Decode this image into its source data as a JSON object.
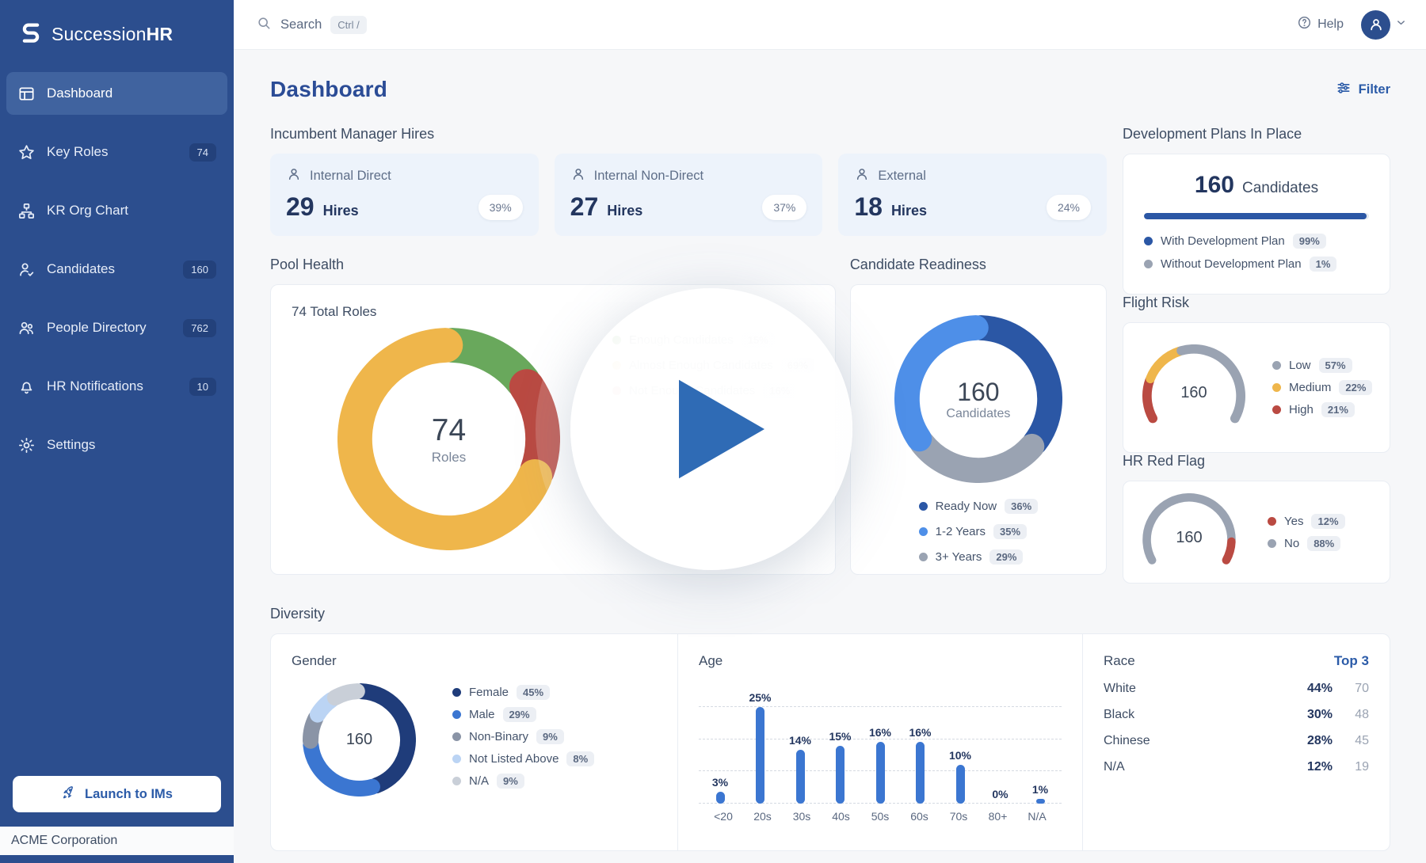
{
  "brand": {
    "prefix": "Succession",
    "suffix": "HR"
  },
  "topbar": {
    "search_label": "Search",
    "search_shortcut": "Ctrl /",
    "help_label": "Help"
  },
  "sidebar": {
    "items": [
      {
        "label": "Dashboard"
      },
      {
        "label": "Key Roles",
        "badge": "74"
      },
      {
        "label": "KR Org Chart"
      },
      {
        "label": "Candidates",
        "badge": "160"
      },
      {
        "label": "People Directory",
        "badge": "762"
      },
      {
        "label": "HR Notifications",
        "badge": "10"
      },
      {
        "label": "Settings"
      }
    ],
    "launch_button": "Launch to IMs",
    "company": "ACME Corporation"
  },
  "page": {
    "title": "Dashboard",
    "filter_label": "Filter"
  },
  "hires": {
    "title": "Incumbent Manager Hires",
    "cards": [
      {
        "label": "Internal Direct",
        "value": "29",
        "unit": "Hires",
        "percent": "39%"
      },
      {
        "label": "Internal Non-Direct",
        "value": "27",
        "unit": "Hires",
        "percent": "37%"
      },
      {
        "label": "External",
        "value": "18",
        "unit": "Hires",
        "percent": "24%"
      }
    ]
  },
  "chart_data": {
    "pool_health": {
      "type": "donut",
      "section_title": "Pool Health",
      "card_title": "74 Total Roles",
      "center_value": "74",
      "center_label": "Roles",
      "segments": [
        {
          "label": "Enough Candidates",
          "value": 15,
          "color": "#69A85C"
        },
        {
          "label": "Almost Enough Candidates",
          "value": 69,
          "color": "#EFB64B"
        },
        {
          "label": "Not Enough Candidates",
          "value": 16,
          "color": "#BA4A42"
        }
      ],
      "draw_order": [
        0,
        2,
        1
      ]
    },
    "candidate_readiness": {
      "type": "donut",
      "section_title": "Candidate Readiness",
      "center_value": "160",
      "center_label": "Candidates",
      "segments": [
        {
          "label": "Ready Now",
          "value": 36,
          "color": "#2B57A5"
        },
        {
          "label": "1-2 Years",
          "value": 35,
          "color": "#4E8FE8"
        },
        {
          "label": "3+ Years",
          "value": 29,
          "color": "#9AA3B2"
        }
      ],
      "draw_order": [
        0,
        2,
        1
      ]
    },
    "development_plans": {
      "type": "progress",
      "section_title": "Development Plans In Place",
      "value": "160",
      "unit": "Candidates",
      "bar_percent": 99,
      "bar_color": "#2B57A5",
      "segments": [
        {
          "label": "With Development Plan",
          "value": 99,
          "color": "#2B57A5"
        },
        {
          "label": "Without Development Plan",
          "value": 1,
          "color": "#9AA3B2"
        }
      ]
    },
    "flight_risk": {
      "type": "gauge",
      "section_title": "Flight Risk",
      "center_value": "160",
      "segments": [
        {
          "label": "Low",
          "value": 57,
          "color": "#9AA3B2"
        },
        {
          "label": "Medium",
          "value": 22,
          "color": "#EFB64B"
        },
        {
          "label": "High",
          "value": 21,
          "color": "#BA4A42"
        }
      ],
      "draw_order": [
        2,
        1,
        0
      ]
    },
    "hr_red_flag": {
      "type": "gauge",
      "section_title": "HR Red Flag",
      "center_value": "160",
      "segments": [
        {
          "label": "Yes",
          "value": 12,
          "color": "#BA4A42"
        },
        {
          "label": "No",
          "value": 88,
          "color": "#9AA3B2"
        }
      ],
      "draw_order": [
        1,
        0
      ]
    },
    "diversity": {
      "section_title": "Diversity",
      "gender": {
        "type": "donut",
        "title": "Gender",
        "center_value": "160",
        "segments": [
          {
            "label": "Female",
            "value": 45,
            "color": "#1F3C7A"
          },
          {
            "label": "Male",
            "value": 29,
            "color": "#3B76D1"
          },
          {
            "label": "Non-Binary",
            "value": 9,
            "color": "#8A94A6"
          },
          {
            "label": "Not Listed Above",
            "value": 8,
            "color": "#BBD4F4"
          },
          {
            "label": "N/A",
            "value": 9,
            "color": "#C9CFD8"
          }
        ],
        "draw_order": [
          0,
          1,
          2,
          3,
          4
        ]
      },
      "age": {
        "type": "bar",
        "title": "Age",
        "categories": [
          "<20",
          "20s",
          "30s",
          "40s",
          "50s",
          "60s",
          "70s",
          "80+",
          "N/A"
        ],
        "values": [
          3,
          25,
          14,
          15,
          16,
          16,
          10,
          0,
          1
        ],
        "bar_color": "#3B76D1",
        "ylim": [
          0,
          25
        ]
      },
      "race": {
        "type": "table",
        "title": "Race",
        "link": "Top 3",
        "rows": [
          {
            "label": "White",
            "percent": "44%",
            "count": "70"
          },
          {
            "label": "Black",
            "percent": "30%",
            "count": "48"
          },
          {
            "label": "Chinese",
            "percent": "28%",
            "count": "45"
          },
          {
            "label": "N/A",
            "percent": "12%",
            "count": "19"
          }
        ]
      }
    }
  }
}
